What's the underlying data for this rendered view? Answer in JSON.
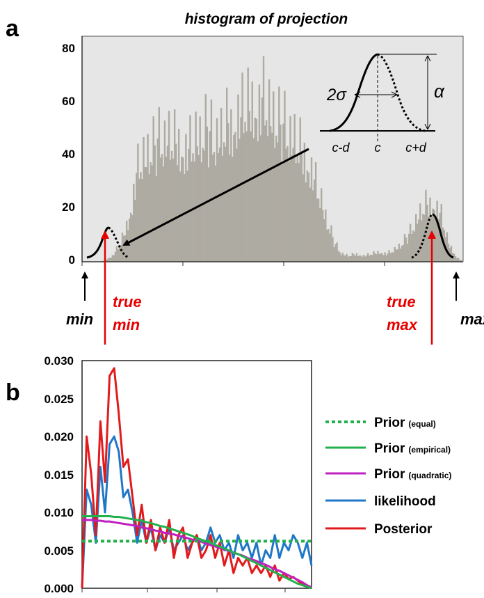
{
  "panels": {
    "a": {
      "letter": "a",
      "title": "histogram of projection",
      "y_ticks": [
        "0",
        "20",
        "40",
        "60",
        "80"
      ],
      "inset": {
        "sigma_label": "2σ",
        "alpha_label": "α",
        "x_labels": [
          "c-d",
          "c",
          "c+d"
        ]
      },
      "arrows": {
        "min_label": "min",
        "max_label": "max",
        "true_min": [
          "true",
          "min"
        ],
        "true_max": [
          "true",
          "max"
        ]
      },
      "colors": {
        "bars": "#aeaba2",
        "background": "#e6e6e6",
        "true_arrow": "#e60000",
        "black": "#000000"
      }
    },
    "b": {
      "letter": "b",
      "y_ticks": [
        "0.000",
        "0.005",
        "0.010",
        "0.015",
        "0.020",
        "0.025",
        "0.030"
      ],
      "legend": [
        {
          "label": "Prior",
          "qualifier": "(equal)",
          "color": "#22b14c",
          "style": "dotted"
        },
        {
          "label": "Prior",
          "qualifier": "(empirical)",
          "color": "#22b14c",
          "style": "solid"
        },
        {
          "label": "Prior",
          "qualifier": "(quadratic)",
          "color": "#c020c0",
          "style": "solid"
        },
        {
          "label": "likelihood",
          "qualifier": "",
          "color": "#1f77c8",
          "style": "solid"
        },
        {
          "label": "Posterior",
          "qualifier": "",
          "color": "#e31a1c",
          "style": "solid"
        }
      ]
    }
  },
  "chart_data": [
    {
      "type": "bar",
      "panel": "a",
      "title": "histogram of projection",
      "xlabel": "",
      "ylabel": "",
      "ylim": [
        0,
        85
      ],
      "x_range": [
        0,
        100
      ],
      "grid": false,
      "series": [
        {
          "name": "",
          "envelope_x": [
            0,
            5,
            8,
            10,
            11,
            12,
            13,
            14,
            15,
            16,
            18,
            20,
            22,
            25,
            28,
            30,
            33,
            35,
            38,
            40,
            42,
            45,
            47,
            50,
            52,
            54,
            56,
            58,
            60,
            62,
            64,
            66,
            68,
            70,
            72,
            74,
            76,
            78,
            80,
            82,
            84,
            86,
            88,
            90,
            92,
            94,
            96,
            98,
            100
          ],
          "envelope_y": [
            0,
            0,
            3,
            9,
            14,
            20,
            30,
            42,
            48,
            52,
            55,
            58,
            62,
            60,
            57,
            62,
            64,
            60,
            68,
            72,
            76,
            80,
            82,
            73,
            66,
            64,
            60,
            55,
            48,
            35,
            22,
            10,
            4,
            3,
            4,
            3,
            4,
            5,
            4,
            6,
            9,
            14,
            22,
            28,
            30,
            25,
            10,
            3,
            0
          ]
        }
      ],
      "annotations": [
        {
          "label": "min"
        },
        {
          "label": "true min"
        },
        {
          "label": "true max"
        },
        {
          "label": "max"
        }
      ]
    },
    {
      "type": "line",
      "panel": "b",
      "xlabel": "",
      "ylabel": "",
      "ylim": [
        0,
        0.03
      ],
      "x_range": [
        0,
        100
      ],
      "grid": false,
      "legend_position": "right",
      "x": [
        0,
        2,
        4,
        6,
        8,
        10,
        12,
        14,
        16,
        18,
        20,
        22,
        24,
        26,
        28,
        30,
        32,
        34,
        36,
        38,
        40,
        42,
        44,
        46,
        48,
        50,
        52,
        54,
        56,
        58,
        60,
        62,
        64,
        66,
        68,
        70,
        72,
        74,
        76,
        78,
        80,
        82,
        84,
        86,
        88,
        90,
        92,
        94,
        96,
        98,
        100
      ],
      "series": [
        {
          "name": "Prior (equal)",
          "values": [
            0.0062,
            0.0062,
            0.0062,
            0.0062,
            0.0062,
            0.0062,
            0.0062,
            0.0062,
            0.0062,
            0.0062,
            0.0062,
            0.0062,
            0.0062,
            0.0062,
            0.0062,
            0.0062,
            0.0062,
            0.0062,
            0.0062,
            0.0062,
            0.0062,
            0.0062,
            0.0062,
            0.0062,
            0.0062,
            0.0062,
            0.0062,
            0.0062,
            0.0062,
            0.0062,
            0.0062,
            0.0062,
            0.0062,
            0.0062,
            0.0062,
            0.0062,
            0.0062,
            0.0062,
            0.0062,
            0.0062,
            0.0062,
            0.0062,
            0.0062,
            0.0062,
            0.0062,
            0.0062,
            0.0062,
            0.0062,
            0.0062,
            0.0062,
            0.0062
          ]
        },
        {
          "name": "Prior (empirical)",
          "values": [
            0.0095,
            0.0095,
            0.0095,
            0.0095,
            0.0095,
            0.0095,
            0.0095,
            0.0094,
            0.0094,
            0.0093,
            0.0092,
            0.0091,
            0.009,
            0.0089,
            0.0087,
            0.0086,
            0.0084,
            0.0082,
            0.0081,
            0.0079,
            0.0077,
            0.0075,
            0.0073,
            0.0071,
            0.0069,
            0.0066,
            0.0064,
            0.0062,
            0.006,
            0.0057,
            0.0055,
            0.0052,
            0.005,
            0.0047,
            0.0045,
            0.0042,
            0.0039,
            0.0036,
            0.0033,
            0.003,
            0.0027,
            0.0024,
            0.0021,
            0.0018,
            0.0015,
            0.0012,
            0.0009,
            0.0006,
            0.0004,
            0.0002,
            0.0
          ]
        },
        {
          "name": "Prior (quadratic)",
          "values": [
            0.009,
            0.009,
            0.009,
            0.0089,
            0.0089,
            0.0088,
            0.0088,
            0.0087,
            0.0086,
            0.0085,
            0.0084,
            0.0083,
            0.0082,
            0.008,
            0.0079,
            0.0078,
            0.0076,
            0.0075,
            0.0073,
            0.0072,
            0.0071,
            0.0069,
            0.0068,
            0.0066,
            0.0064,
            0.0063,
            0.0061,
            0.0059,
            0.0057,
            0.0055,
            0.0053,
            0.0051,
            0.0049,
            0.0047,
            0.0045,
            0.0043,
            0.004,
            0.0038,
            0.0036,
            0.0033,
            0.0031,
            0.0028,
            0.0025,
            0.0023,
            0.002,
            0.0017,
            0.0014,
            0.0011,
            0.0008,
            0.0004,
            0.0001
          ]
        },
        {
          "name": "likelihood",
          "values": [
            0.0,
            0.013,
            0.011,
            0.006,
            0.016,
            0.01,
            0.019,
            0.02,
            0.018,
            0.012,
            0.013,
            0.01,
            0.006,
            0.009,
            0.006,
            0.008,
            0.005,
            0.007,
            0.006,
            0.008,
            0.005,
            0.006,
            0.007,
            0.005,
            0.006,
            0.007,
            0.005,
            0.006,
            0.008,
            0.006,
            0.007,
            0.005,
            0.006,
            0.004,
            0.007,
            0.005,
            0.006,
            0.004,
            0.006,
            0.003,
            0.005,
            0.004,
            0.007,
            0.004,
            0.006,
            0.005,
            0.007,
            0.006,
            0.004,
            0.006,
            0.003
          ]
        },
        {
          "name": "Posterior",
          "values": [
            0.0,
            0.02,
            0.015,
            0.007,
            0.022,
            0.014,
            0.028,
            0.029,
            0.023,
            0.016,
            0.017,
            0.012,
            0.007,
            0.011,
            0.006,
            0.009,
            0.005,
            0.008,
            0.006,
            0.009,
            0.004,
            0.007,
            0.008,
            0.004,
            0.006,
            0.007,
            0.004,
            0.005,
            0.007,
            0.004,
            0.006,
            0.003,
            0.005,
            0.002,
            0.004,
            0.003,
            0.004,
            0.002,
            0.003,
            0.002,
            0.003,
            0.0015,
            0.003,
            0.001,
            0.002,
            0.0012,
            0.0015,
            0.001,
            0.0005,
            0.0003,
            0.0
          ]
        }
      ]
    }
  ]
}
